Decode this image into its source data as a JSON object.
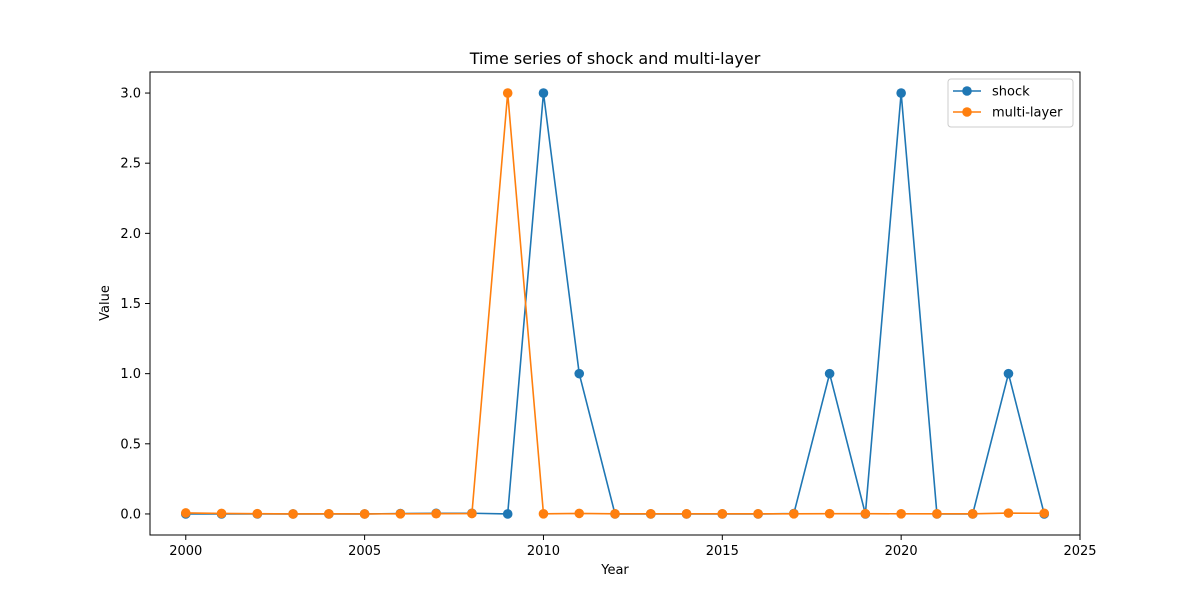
{
  "chart_data": {
    "type": "line",
    "title": "Time series of shock and multi-layer",
    "xlabel": "Year",
    "ylabel": "Value",
    "x": [
      2000,
      2001,
      2002,
      2003,
      2004,
      2005,
      2006,
      2007,
      2008,
      2009,
      2010,
      2011,
      2012,
      2013,
      2014,
      2015,
      2016,
      2017,
      2018,
      2019,
      2020,
      2021,
      2022,
      2023,
      2024
    ],
    "xlim": [
      1999,
      2025
    ],
    "ylim": [
      -0.15,
      3.15
    ],
    "xticks": [
      2000,
      2005,
      2010,
      2015,
      2020,
      2025
    ],
    "yticks": [
      0.0,
      0.5,
      1.0,
      1.5,
      2.0,
      2.5,
      3.0
    ],
    "xtick_labels": [
      "2000",
      "2005",
      "2010",
      "2015",
      "2020",
      "2025"
    ],
    "ytick_labels": [
      "0.0",
      "0.5",
      "1.0",
      "1.5",
      "2.0",
      "2.5",
      "3.0"
    ],
    "grid": false,
    "legend_position": "top-right",
    "series": [
      {
        "name": "shock",
        "color": "#1f77b4",
        "values": [
          0,
          0,
          0,
          0,
          0,
          0,
          0.003,
          0.005,
          0.005,
          0,
          3,
          1,
          0,
          0,
          0,
          0,
          0,
          0.003,
          1,
          0,
          3,
          0,
          0,
          1,
          0
        ]
      },
      {
        "name": "multi-layer",
        "color": "#ff7f0e",
        "values": [
          0.007,
          0.004,
          0.002,
          0,
          0.001,
          0,
          0.001,
          0.002,
          0.003,
          3,
          0.001,
          0.004,
          0.001,
          0.001,
          0.001,
          0.001,
          0.001,
          0.001,
          0.002,
          0.002,
          0.001,
          0.001,
          0.001,
          0.006,
          0.005
        ]
      }
    ]
  }
}
